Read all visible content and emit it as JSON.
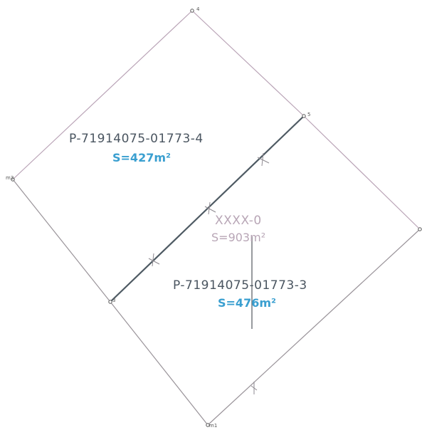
{
  "colors": {
    "boundary": "#b9a3b6",
    "boundary_dark": "#9a949a",
    "split_line": "#4e5a63",
    "parcel_id_dark": "#4a5560",
    "parcel_id_light": "#b8a6b6",
    "area_blue": "#3a9fd0",
    "area_light": "#b8a6b6"
  },
  "vertices": {
    "top": "4",
    "right_upper": "5",
    "left": "m3",
    "left_lower": "3",
    "bottom": "m1"
  },
  "parcels": [
    {
      "id": "P-71914075-01773-4",
      "area": "S=427m²"
    },
    {
      "id": "XXXX-0",
      "area": "S=903m²"
    },
    {
      "id": "P-71914075-01773-3",
      "area": "S=476m²"
    }
  ]
}
